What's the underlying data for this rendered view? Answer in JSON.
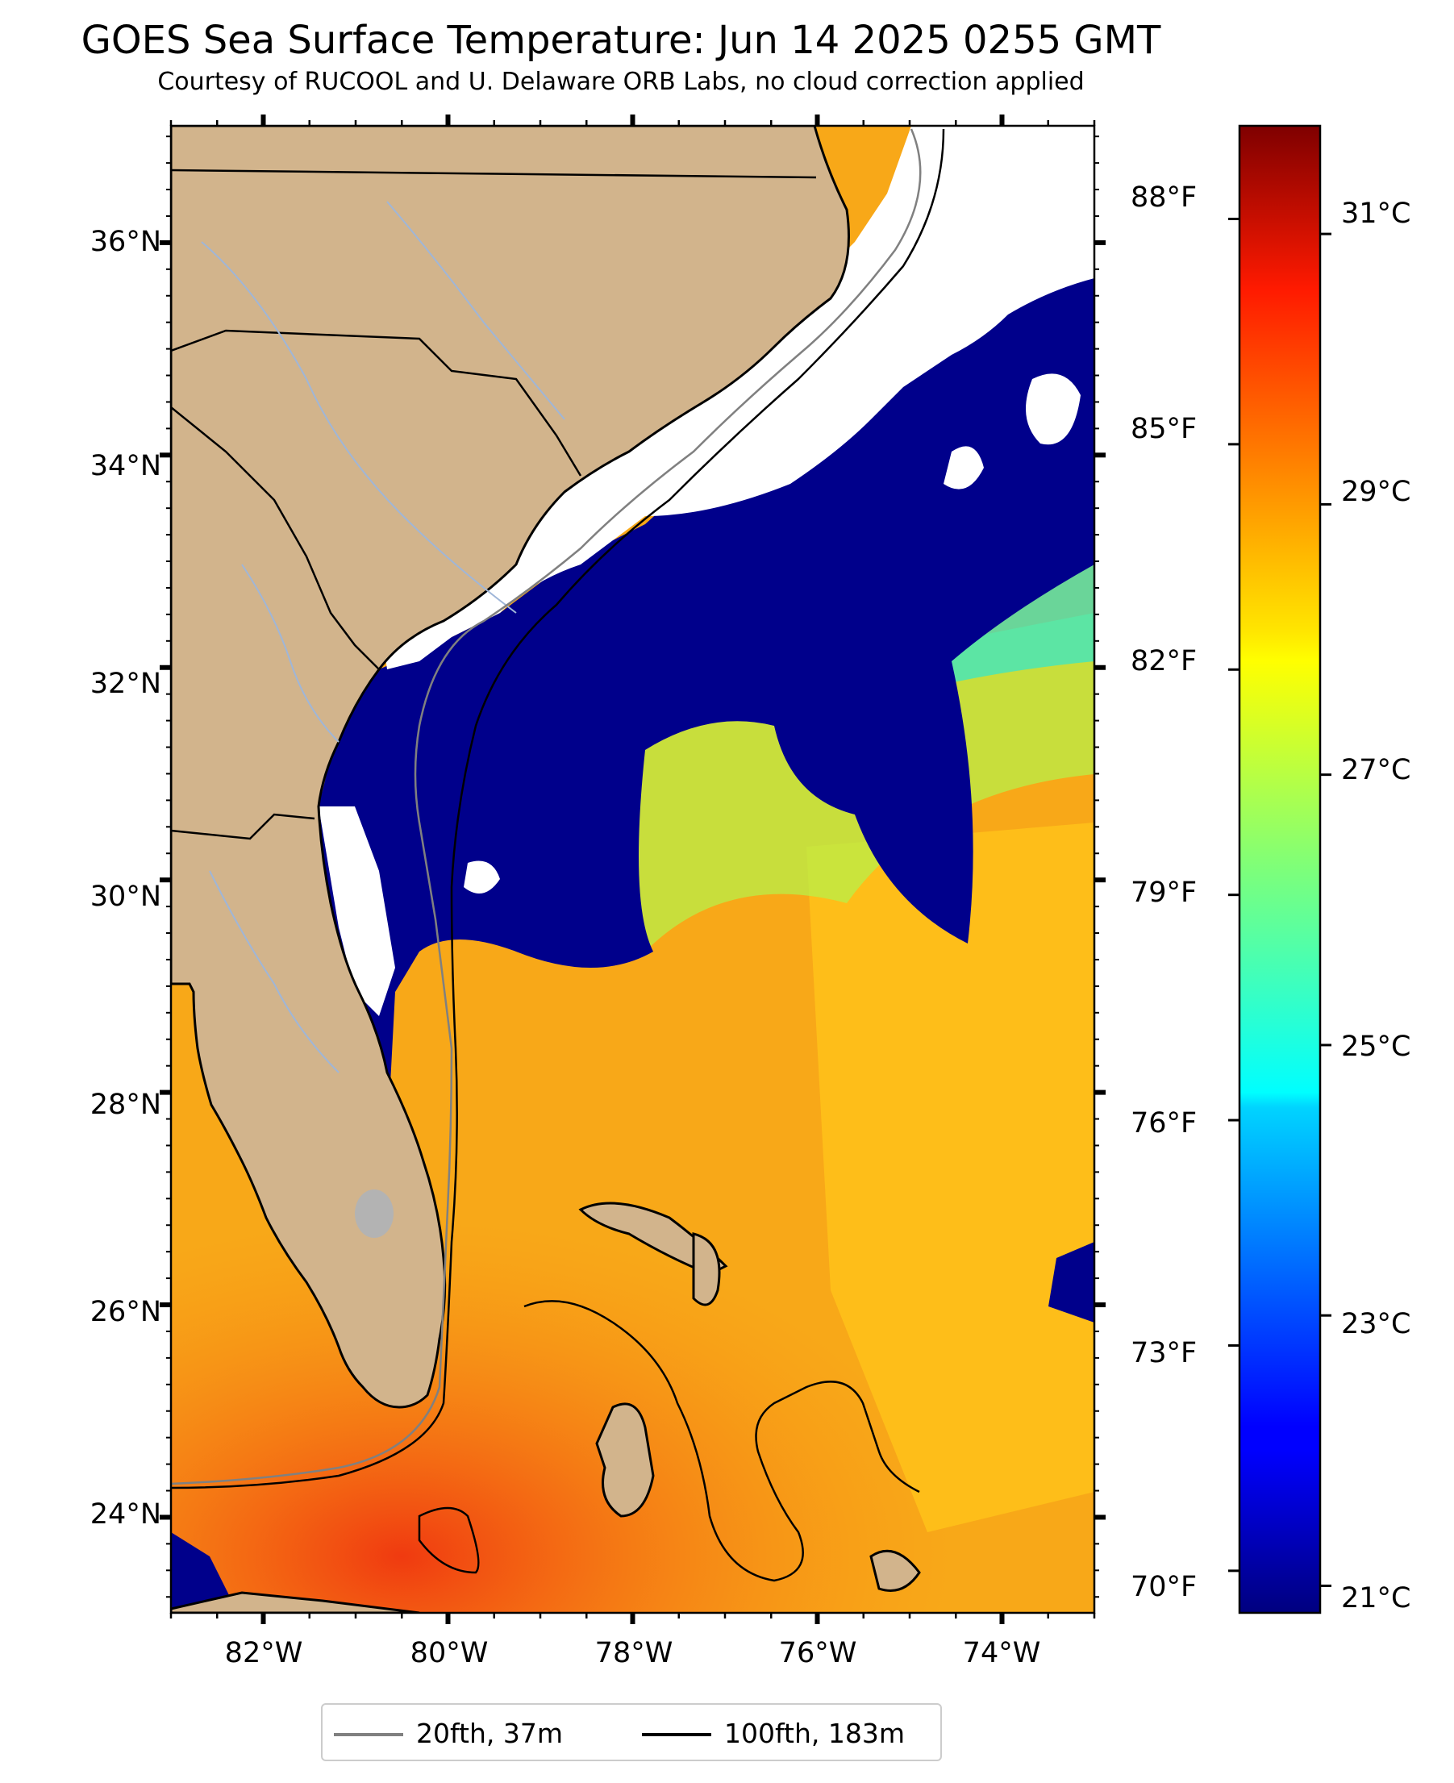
{
  "title": "GOES Sea Surface Temperature: Jun 14 2025 0255 GMT",
  "subtitle": "Courtesy of RUCOOL and U. Delaware ORB Labs, no cloud correction applied",
  "map": {
    "lon_range": [
      -83.0,
      -73.0
    ],
    "lat_range": [
      23.1,
      37.1
    ],
    "lat_ticks": [
      "24°N",
      "26°N",
      "28°N",
      "30°N",
      "32°N",
      "34°N",
      "36°N"
    ],
    "lon_ticks": [
      "82°W",
      "80°W",
      "78°W",
      "76°W",
      "74°W"
    ],
    "colors": {
      "land": "#d2b48c",
      "cloud": "#ffffff",
      "coast": "#000000",
      "rivers": "#9fb6d8",
      "isobath_20": "#808080",
      "isobath_100": "#000000"
    }
  },
  "colorbar": {
    "colormap": "jet",
    "celsius_ticks": [
      "21°C",
      "23°C",
      "25°C",
      "27°C",
      "29°C",
      "31°C"
    ],
    "fahrenheit_ticks": [
      "70°F",
      "73°F",
      "76°F",
      "79°F",
      "82°F",
      "85°F",
      "88°F"
    ],
    "range_c": [
      20.8,
      31.8
    ]
  },
  "legend": {
    "items": [
      {
        "label": "20fth, 37m",
        "color": "#808080"
      },
      {
        "label": "100fth, 183m",
        "color": "#000000"
      }
    ],
    "placement": "bottom-center"
  }
}
